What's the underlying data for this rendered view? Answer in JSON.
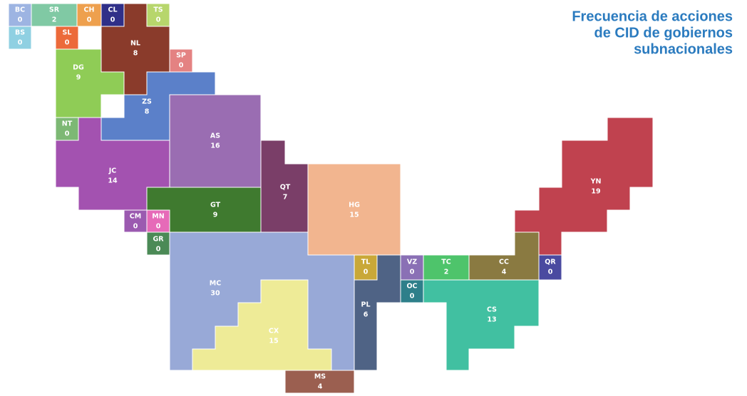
{
  "title": [
    "Frecuencia de acciones",
    "de CID de gobiernos",
    "subnacionales"
  ],
  "regions": [
    {
      "code": "BC",
      "value": 0,
      "color": "#9db4e2"
    },
    {
      "code": "SR",
      "value": 2,
      "color": "#80c9a4"
    },
    {
      "code": "CH",
      "value": 0,
      "color": "#eea04e"
    },
    {
      "code": "CL",
      "value": 0,
      "color": "#2f2f88"
    },
    {
      "code": "NL",
      "value": 8,
      "color": "#8a3b2b"
    },
    {
      "code": "TS",
      "value": 0,
      "color": "#b7d66c"
    },
    {
      "code": "BS",
      "value": 0,
      "color": "#8fd0e2"
    },
    {
      "code": "SL",
      "value": 0,
      "color": "#ec6a3a"
    },
    {
      "code": "SP",
      "value": 0,
      "color": "#e48282"
    },
    {
      "code": "DG",
      "value": 9,
      "color": "#8fcc56"
    },
    {
      "code": "ZS",
      "value": 8,
      "color": "#5b80c9"
    },
    {
      "code": "NT",
      "value": 0,
      "color": "#7db874"
    },
    {
      "code": "AS",
      "value": 16,
      "color": "#9a6db2"
    },
    {
      "code": "JC",
      "value": 14,
      "color": "#a352b0"
    },
    {
      "code": "QT",
      "value": 7,
      "color": "#7a3e68"
    },
    {
      "code": "HG",
      "value": 15,
      "color": "#f2b58f"
    },
    {
      "code": "GT",
      "value": 9,
      "color": "#3f7a2f"
    },
    {
      "code": "CM",
      "value": 0,
      "color": "#9b5ab0"
    },
    {
      "code": "MN",
      "value": 0,
      "color": "#e66ab8"
    },
    {
      "code": "GR",
      "value": 0,
      "color": "#4b8a56"
    },
    {
      "code": "MC",
      "value": 30,
      "color": "#98a9d7"
    },
    {
      "code": "CX",
      "value": 15,
      "color": "#eeeb97"
    },
    {
      "code": "MS",
      "value": 4,
      "color": "#9b5f50"
    },
    {
      "code": "TL",
      "value": 0,
      "color": "#c9a838"
    },
    {
      "code": "PL",
      "value": 6,
      "color": "#4f6385"
    },
    {
      "code": "VZ",
      "value": 0,
      "color": "#8a70b5"
    },
    {
      "code": "OC",
      "value": 0,
      "color": "#2e7f8a"
    },
    {
      "code": "TC",
      "value": 2,
      "color": "#4ec46b"
    },
    {
      "code": "CC",
      "value": 4,
      "color": "#8a7a41"
    },
    {
      "code": "QR",
      "value": 0,
      "color": "#4a4aa0"
    },
    {
      "code": "CS",
      "value": 13,
      "color": "#41c0a1"
    },
    {
      "code": "YN",
      "value": 19,
      "color": "#c0424f"
    }
  ]
}
